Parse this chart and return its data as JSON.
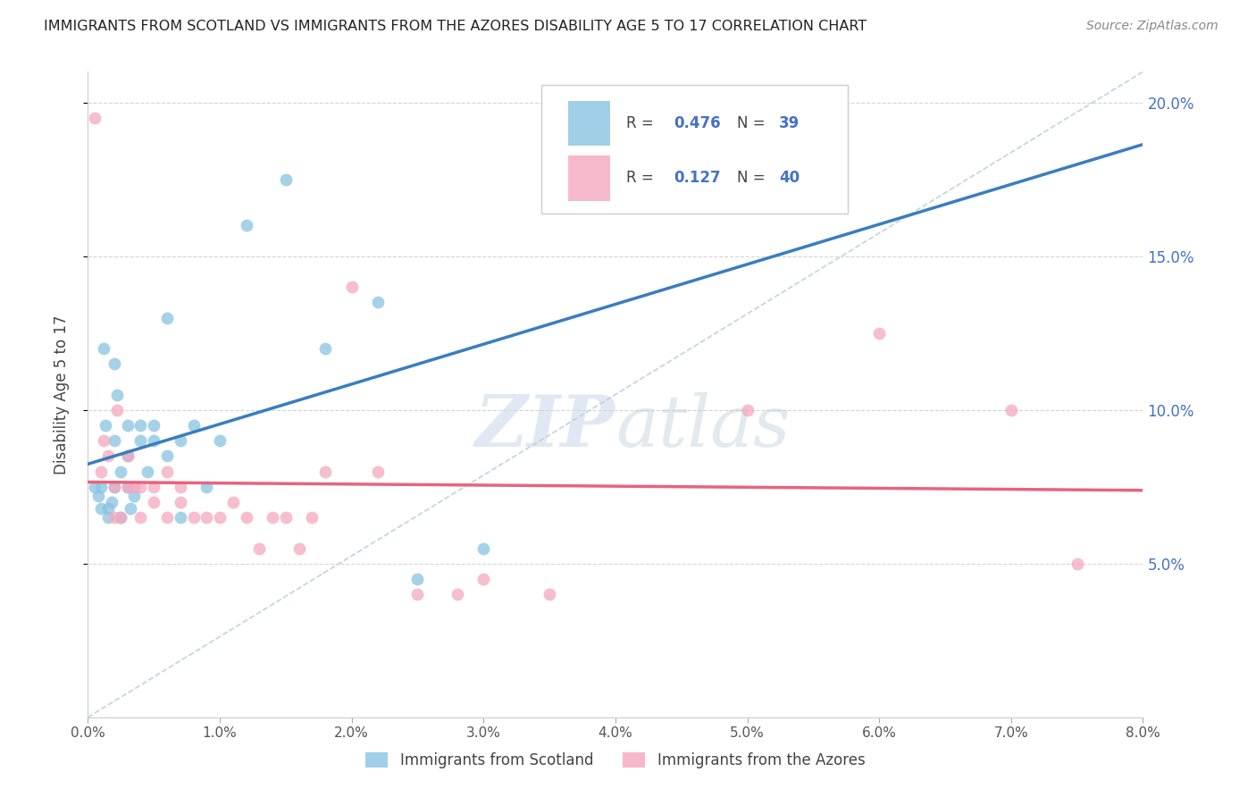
{
  "title": "IMMIGRANTS FROM SCOTLAND VS IMMIGRANTS FROM THE AZORES DISABILITY AGE 5 TO 17 CORRELATION CHART",
  "source": "Source: ZipAtlas.com",
  "ylabel": "Disability Age 5 to 17",
  "legend1_label": "Immigrants from Scotland",
  "legend2_label": "Immigrants from the Azores",
  "R_scotland": 0.476,
  "N_scotland": 39,
  "R_azores": 0.127,
  "N_azores": 40,
  "scotland_color": "#89c4e1",
  "azores_color": "#f4a8be",
  "scotland_line_color": "#3a7dbf",
  "azores_line_color": "#e8637d",
  "diagonal_color": "#b8cfe0",
  "x_min": 0.0,
  "x_max": 0.08,
  "y_min": 0.0,
  "y_max": 0.21,
  "scotland_x": [
    0.0005,
    0.0008,
    0.001,
    0.001,
    0.0012,
    0.0013,
    0.0015,
    0.0015,
    0.0018,
    0.002,
    0.002,
    0.002,
    0.0022,
    0.0025,
    0.0025,
    0.003,
    0.003,
    0.003,
    0.0032,
    0.0035,
    0.004,
    0.004,
    0.0045,
    0.005,
    0.005,
    0.006,
    0.006,
    0.007,
    0.007,
    0.008,
    0.009,
    0.01,
    0.012,
    0.015,
    0.018,
    0.022,
    0.025,
    0.03,
    0.04
  ],
  "scotland_y": [
    0.075,
    0.072,
    0.068,
    0.075,
    0.12,
    0.095,
    0.065,
    0.068,
    0.07,
    0.115,
    0.09,
    0.075,
    0.105,
    0.08,
    0.065,
    0.085,
    0.095,
    0.075,
    0.068,
    0.072,
    0.09,
    0.095,
    0.08,
    0.095,
    0.09,
    0.085,
    0.13,
    0.09,
    0.065,
    0.095,
    0.075,
    0.09,
    0.16,
    0.175,
    0.12,
    0.135,
    0.045,
    0.055,
    0.17
  ],
  "azores_x": [
    0.0005,
    0.001,
    0.0012,
    0.0015,
    0.002,
    0.002,
    0.0022,
    0.0025,
    0.003,
    0.003,
    0.0035,
    0.004,
    0.004,
    0.005,
    0.005,
    0.006,
    0.006,
    0.007,
    0.007,
    0.008,
    0.009,
    0.01,
    0.011,
    0.012,
    0.013,
    0.014,
    0.015,
    0.016,
    0.017,
    0.018,
    0.02,
    0.022,
    0.025,
    0.028,
    0.03,
    0.035,
    0.05,
    0.06,
    0.07,
    0.075
  ],
  "azores_y": [
    0.195,
    0.08,
    0.09,
    0.085,
    0.065,
    0.075,
    0.1,
    0.065,
    0.075,
    0.085,
    0.075,
    0.075,
    0.065,
    0.07,
    0.075,
    0.065,
    0.08,
    0.07,
    0.075,
    0.065,
    0.065,
    0.065,
    0.07,
    0.065,
    0.055,
    0.065,
    0.065,
    0.055,
    0.065,
    0.08,
    0.14,
    0.08,
    0.04,
    0.04,
    0.045,
    0.04,
    0.1,
    0.125,
    0.1,
    0.05
  ],
  "watermark_zip": "ZIP",
  "watermark_atlas": "atlas",
  "background_color": "#ffffff",
  "grid_color": "#d0d0d0"
}
